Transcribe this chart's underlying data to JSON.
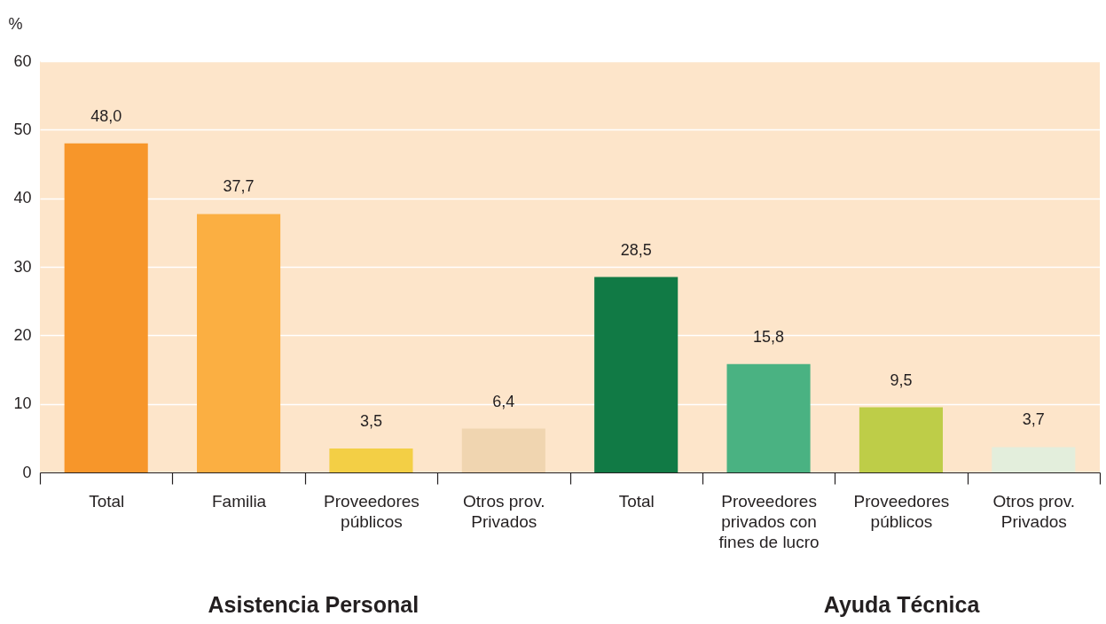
{
  "chart_data": {
    "type": "bar",
    "ylabel": "%",
    "categories": [
      "Total",
      "Familia",
      "Proveedores públicos",
      "Otros prov. Privados",
      "Total",
      "Proveedores privados con fines de lucro",
      "Proveedores públicos",
      "Otros prov. Privados"
    ],
    "values": [
      48.0,
      37.7,
      3.5,
      6.4,
      28.5,
      15.8,
      9.5,
      3.7
    ],
    "value_labels": [
      "48,0",
      "37,7",
      "3,5",
      "6,4",
      "28,5",
      "15,8",
      "9,5",
      "3,7"
    ],
    "colors": [
      "#f7962a",
      "#fbaf42",
      "#f3cf45",
      "#f0d5b0",
      "#117a45",
      "#4ab282",
      "#becd48",
      "#e3eedc"
    ],
    "ylim": [
      0,
      60
    ],
    "yticks": [
      0,
      10,
      20,
      30,
      40,
      50,
      60
    ],
    "grid": "y",
    "annotations": [
      "Asistencia Personal",
      "Ayuda Técnica"
    ]
  }
}
